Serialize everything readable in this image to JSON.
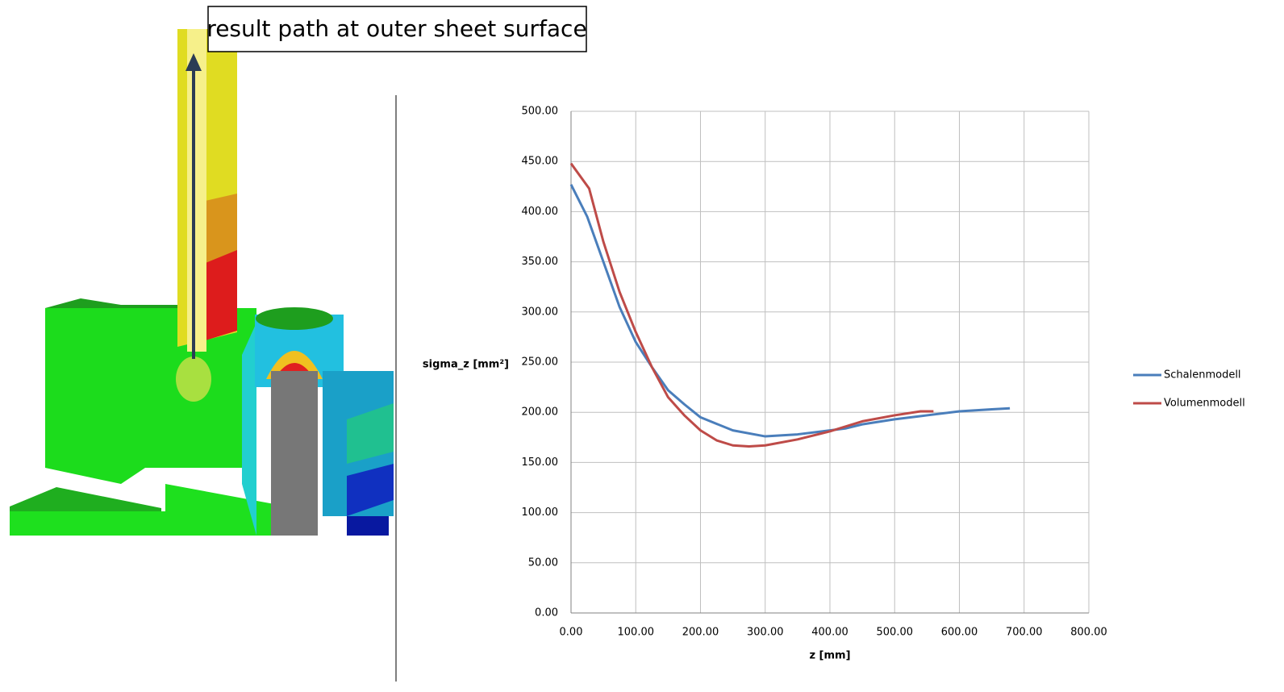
{
  "annotation": "result path at outer sheet surface",
  "chart_data": {
    "type": "line",
    "x_label": "z [mm]",
    "y_label": "sigma_z [mm²]",
    "xlim": [
      0,
      800
    ],
    "ylim": [
      0,
      500
    ],
    "xticks": [
      {
        "value": 0,
        "label": "0.00"
      },
      {
        "value": 100,
        "label": "100.00"
      },
      {
        "value": 200,
        "label": "200.00"
      },
      {
        "value": 300,
        "label": "300.00"
      },
      {
        "value": 400,
        "label": "400.00"
      },
      {
        "value": 500,
        "label": "500.00"
      },
      {
        "value": 600,
        "label": "600.00"
      },
      {
        "value": 700,
        "label": "700.00"
      },
      {
        "value": 800,
        "label": "800.00"
      }
    ],
    "yticks": [
      {
        "value": 0,
        "label": "0.00"
      },
      {
        "value": 50,
        "label": "50.00"
      },
      {
        "value": 100,
        "label": "100.00"
      },
      {
        "value": 150,
        "label": "150.00"
      },
      {
        "value": 200,
        "label": "200.00"
      },
      {
        "value": 250,
        "label": "250.00"
      },
      {
        "value": 300,
        "label": "300.00"
      },
      {
        "value": 350,
        "label": "350.00"
      },
      {
        "value": 400,
        "label": "400.00"
      },
      {
        "value": 450,
        "label": "450.00"
      },
      {
        "value": 500,
        "label": "500.00"
      }
    ],
    "grid": true,
    "legend": "right",
    "series": [
      {
        "name": "Schalenmodell",
        "color": "#4a7ebb",
        "x": [
          0,
          25,
          50,
          75,
          100,
          125,
          150,
          175,
          200,
          250,
          300,
          350,
          400,
          425,
          450,
          500,
          550,
          600,
          650,
          678
        ],
        "values": [
          427,
          395,
          350,
          305,
          270,
          245,
          222,
          208,
          195,
          182,
          176,
          178,
          182,
          184,
          188,
          193,
          197,
          201,
          203,
          204
        ]
      },
      {
        "name": "Volumenmodell",
        "color": "#be4b48",
        "x": [
          0,
          28,
          50,
          75,
          100,
          125,
          150,
          175,
          200,
          225,
          250,
          275,
          300,
          350,
          400,
          450,
          500,
          540,
          560
        ],
        "values": [
          448,
          423,
          370,
          320,
          280,
          245,
          215,
          197,
          182,
          172,
          167,
          166,
          167,
          173,
          181,
          191,
          197,
          201,
          201
        ]
      }
    ]
  }
}
